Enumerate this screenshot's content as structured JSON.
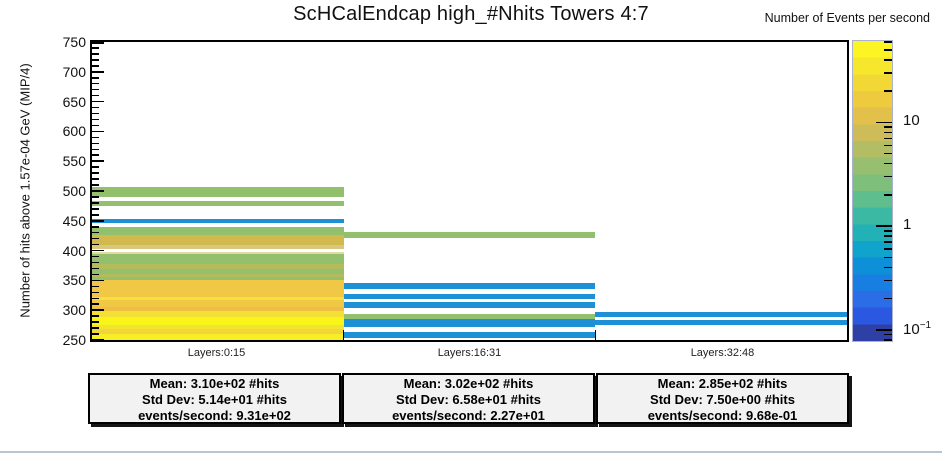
{
  "title": "ScHCalEndcap high_#Nhits Towers 4:7",
  "chart_data": {
    "type": "heatmap",
    "title": "ScHCalEndcap high_#Nhits Towers 4:7",
    "ylabel": "Number of hits above 1.57e-04 GeV  (MIP/4)",
    "zlabel": "Number of Events per second",
    "ylim": [
      250,
      750
    ],
    "y_major_step": 50,
    "y_minor_step": 10,
    "z_scale": "log",
    "grid": false,
    "categories": [
      "Layers:0:15",
      "Layers:16:31",
      "Layers:32:48"
    ],
    "columns": [
      {
        "label": "Layers:0:15",
        "bands": [
          {
            "y0": 490,
            "y1": 506,
            "color": "#92c06d"
          },
          {
            "y0": 475,
            "y1": 483,
            "color": "#92c06d"
          },
          {
            "y0": 446,
            "y1": 453,
            "color": "#1d90d6"
          },
          {
            "y0": 426,
            "y1": 440,
            "color": "#92c06d"
          },
          {
            "y0": 410,
            "y1": 426,
            "color": "#d2b94d"
          },
          {
            "y0": 402,
            "y1": 410,
            "color": "#d9c77f"
          },
          {
            "y0": 394,
            "y1": 397,
            "color": "#e2d9a6"
          },
          {
            "y0": 378,
            "y1": 394,
            "color": "#92c06d"
          },
          {
            "y0": 369,
            "y1": 378,
            "color": "#b3bb5b"
          },
          {
            "y0": 361,
            "y1": 369,
            "color": "#92c06d"
          },
          {
            "y0": 356,
            "y1": 361,
            "color": "#b3bb5b"
          },
          {
            "y0": 351,
            "y1": 356,
            "color": "#92c06d"
          },
          {
            "y0": 322,
            "y1": 351,
            "color": "#f0c845"
          },
          {
            "y0": 317,
            "y1": 322,
            "color": "#f5e139"
          },
          {
            "y0": 306,
            "y1": 317,
            "color": "#f0c845"
          },
          {
            "y0": 298,
            "y1": 306,
            "color": "#eebf42"
          },
          {
            "y0": 289,
            "y1": 298,
            "color": "#f3df36"
          },
          {
            "y0": 275,
            "y1": 289,
            "color": "#f9f51b"
          },
          {
            "y0": 268,
            "y1": 275,
            "color": "#f3e42e"
          },
          {
            "y0": 260,
            "y1": 268,
            "color": "#f1d53b"
          },
          {
            "y0": 250,
            "y1": 260,
            "color": "#f7ee25"
          }
        ]
      },
      {
        "label": "Layers:16:31",
        "bands": [
          {
            "y0": 421,
            "y1": 431,
            "color": "#92c06d"
          },
          {
            "y0": 335,
            "y1": 346,
            "color": "#1d90d6"
          },
          {
            "y0": 318,
            "y1": 328,
            "color": "#1d90d6"
          },
          {
            "y0": 304,
            "y1": 314,
            "color": "#1d90d6"
          },
          {
            "y0": 286,
            "y1": 294,
            "color": "#92c06d"
          },
          {
            "y0": 272,
            "y1": 286,
            "color": "#1d90d6"
          },
          {
            "y0": 253,
            "y1": 263,
            "color": "#1d90d6"
          }
        ]
      },
      {
        "label": "Layers:32:48",
        "bands": [
          {
            "y0": 289,
            "y1": 297,
            "color": "#1d90d6"
          },
          {
            "y0": 275,
            "y1": 283,
            "color": "#1d90d6"
          }
        ]
      }
    ],
    "colorbar": {
      "title": "Number of Events per second",
      "zlim": [
        0.078,
        61
      ],
      "colors": [
        "#fdf523",
        "#f7e72c",
        "#f2d834",
        "#eeca3e",
        "#e3c04a",
        "#cdbc58",
        "#b2bd64",
        "#98bf6f",
        "#7ebf7c",
        "#5fbe8e",
        "#3cb9a2",
        "#22b1b6",
        "#10a3cb",
        "#0d90d7",
        "#187ee1",
        "#2a6de7",
        "#2a58e1",
        "#2e3fa5"
      ],
      "major_ticks": [
        {
          "value": 10,
          "text": "10",
          "sup": ""
        },
        {
          "value": 1,
          "text": "1",
          "sup": ""
        },
        {
          "value": 0.1,
          "text": "10",
          "sup": "−1"
        }
      ]
    }
  },
  "stats_boxes": [
    {
      "lines": [
        "Mean: 3.10e+02 #hits",
        "Std Dev: 5.14e+01 #hits",
        "events/second: 9.31e+02"
      ]
    },
    {
      "lines": [
        "Mean: 3.02e+02 #hits",
        "Std Dev: 6.58e+01 #hits",
        "events/second: 2.27e+01"
      ]
    },
    {
      "lines": [
        "Mean: 2.85e+02 #hits",
        "Std Dev: 7.50e+00 #hits",
        "events/second: 9.68e-01"
      ]
    }
  ],
  "colors": {
    "frame": "#000000",
    "stat_box_bg": "#f2f2f2",
    "window_bottom_edge": "#b9c6d0",
    "band_green": "#92c06d",
    "band_blue": "#1d90d6",
    "band_yellow": "#f7ee25"
  }
}
